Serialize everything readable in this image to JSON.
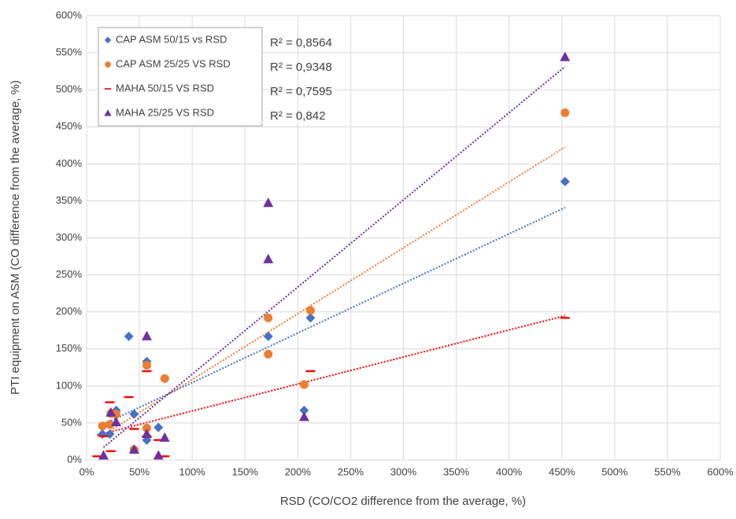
{
  "chart_data": {
    "type": "scatter",
    "x_label": "RSD (CO/CO2 difference from the average, %)",
    "y_label": "PTI equipment on ASM (CO difference from the average, %)",
    "xlim": [
      0,
      600
    ],
    "ylim": [
      0,
      600
    ],
    "xticks": [
      {
        "value": 0,
        "label": "0%"
      },
      {
        "value": 50,
        "label": "50%"
      },
      {
        "value": 100,
        "label": "100%"
      },
      {
        "value": 150,
        "label": "150%"
      },
      {
        "value": 200,
        "label": "200%"
      },
      {
        "value": 250,
        "label": "250%"
      },
      {
        "value": 300,
        "label": "300%"
      },
      {
        "value": 350,
        "label": "350%"
      },
      {
        "value": 400,
        "label": "400%"
      },
      {
        "value": 450,
        "label": "450%"
      },
      {
        "value": 500,
        "label": "500%"
      },
      {
        "value": 550,
        "label": "550%"
      },
      {
        "value": 600,
        "label": "600%"
      }
    ],
    "yticks": [
      {
        "value": 0,
        "label": "0%"
      },
      {
        "value": 50,
        "label": "50%"
      },
      {
        "value": 100,
        "label": "100%"
      },
      {
        "value": 150,
        "label": "150%"
      },
      {
        "value": 200,
        "label": "200%"
      },
      {
        "value": 250,
        "label": "250%"
      },
      {
        "value": 300,
        "label": "300%"
      },
      {
        "value": 350,
        "label": "350%"
      },
      {
        "value": 400,
        "label": "400%"
      },
      {
        "value": 450,
        "label": "450%"
      },
      {
        "value": 500,
        "label": "500%"
      },
      {
        "value": 550,
        "label": "550%"
      },
      {
        "value": 600,
        "label": "600%"
      }
    ],
    "grid": true,
    "trendline": "linear",
    "legend": "upper left",
    "series": [
      {
        "name": "CAP ASM 50/15 vs RSD",
        "color": "#4472c4",
        "marker": "diamond",
        "r2_label": "R² = 0,8564",
        "x": [
          15,
          22,
          28,
          40,
          45,
          57,
          57,
          68,
          172,
          206,
          212,
          453
        ],
        "values": [
          35,
          35,
          67,
          167,
          62,
          27,
          133,
          44,
          167,
          67,
          192,
          376
        ]
      },
      {
        "name": "CAP ASM 25/25 VS RSD",
        "color": "#ed7d31",
        "marker": "circle",
        "r2_label": "R² = 0,9348",
        "x": [
          15,
          22,
          23,
          28,
          45,
          57,
          57,
          74,
          172,
          172,
          206,
          212,
          453
        ],
        "values": [
          46,
          48,
          63,
          62,
          14,
          128,
          43,
          110,
          192,
          143,
          102,
          202,
          469
        ]
      },
      {
        "name": "MAHA 50/15 VS RSD",
        "color": "#ff0000",
        "marker": "dash",
        "r2_label": "R² = 0,7595",
        "x": [
          10,
          16,
          22,
          23,
          40,
          45,
          57,
          57,
          68,
          74,
          212,
          453
        ],
        "values": [
          5,
          32,
          78,
          12,
          85,
          42,
          120,
          32,
          27,
          5,
          120,
          192
        ]
      },
      {
        "name": "MAHA 25/25 VS RSD",
        "color": "#7030a0",
        "marker": "triangle",
        "r2_label": "R² = 0,842",
        "x": [
          16,
          23,
          28,
          45,
          57,
          57,
          68,
          74,
          172,
          172,
          206,
          453
        ],
        "values": [
          6,
          64,
          51,
          14,
          167,
          35,
          6,
          30,
          347,
          271,
          58,
          544
        ]
      }
    ]
  }
}
